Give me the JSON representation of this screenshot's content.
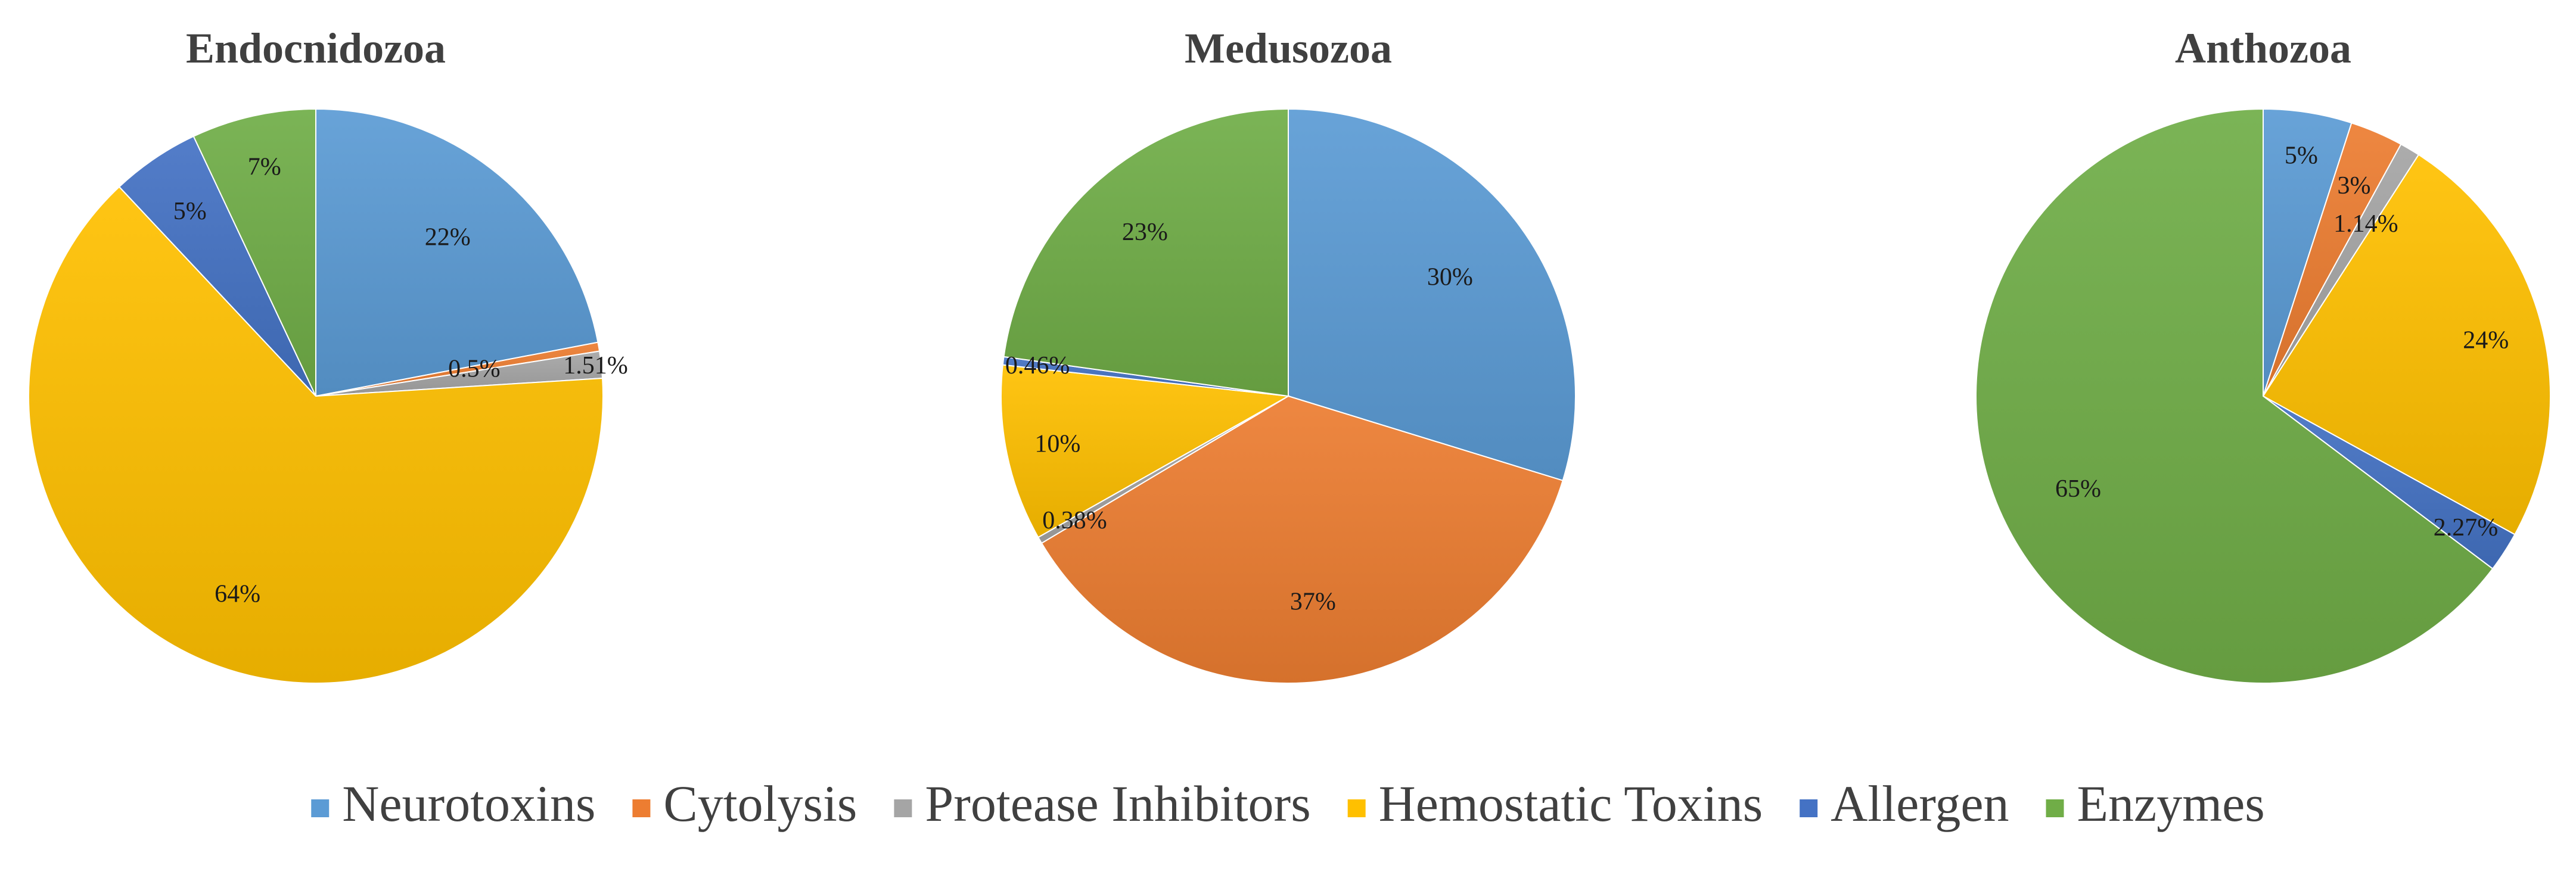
{
  "chart_data": [
    {
      "type": "pie",
      "title": "Endocnidozoa",
      "categories": [
        "Neurotoxins",
        "Cytolysis",
        "Protease Inhibitors",
        "Hemostatic Toxins",
        "Allergen",
        "Enzymes"
      ],
      "values": [
        22,
        0.5,
        1.51,
        64,
        5,
        7
      ],
      "data_labels": [
        "22%",
        "0.5%",
        "1.51%",
        "64%",
        "5%",
        "7%"
      ]
    },
    {
      "type": "pie",
      "title": "Medusozoa",
      "categories": [
        "Neurotoxins",
        "Cytolysis",
        "Protease Inhibitors",
        "Hemostatic Toxins",
        "Allergen",
        "Enzymes"
      ],
      "values": [
        30,
        37,
        0.38,
        10,
        0.46,
        23
      ],
      "data_labels": [
        "30%",
        "37%",
        "0.38%",
        "10%",
        "0.46%",
        "23%"
      ]
    },
    {
      "type": "pie",
      "title": "Anthozoa",
      "categories": [
        "Neurotoxins",
        "Cytolysis",
        "Protease Inhibitors",
        "Hemostatic Toxins",
        "Allergen",
        "Enzymes"
      ],
      "values": [
        5,
        3,
        1.14,
        24,
        2.27,
        65
      ],
      "data_labels": [
        "5%",
        "3%",
        "1.14%",
        "24%",
        "2.27%",
        "65%"
      ]
    }
  ],
  "legend": {
    "placement": "bottom",
    "items": [
      {
        "label": "Neurotoxins",
        "color": "#5B9BD5"
      },
      {
        "label": "Cytolysis",
        "color": "#ED7D31"
      },
      {
        "label": "Protease Inhibitors",
        "color": "#A5A5A5"
      },
      {
        "label": "Hemostatic Toxins",
        "color": "#FFC000"
      },
      {
        "label": "Allergen",
        "color": "#4472C4"
      },
      {
        "label": "Enzymes",
        "color": "#70AD47"
      }
    ]
  }
}
